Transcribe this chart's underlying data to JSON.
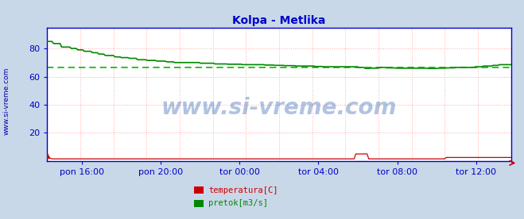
{
  "title": "Kolpa - Metlika",
  "title_color": "#0000cc",
  "title_fontsize": 10,
  "bg_color": "#c8d8e8",
  "plot_bg_color": "#ffffff",
  "grid_color": "#ffaaaa",
  "ylim": [
    0,
    95
  ],
  "yticks": [
    20,
    40,
    60,
    80
  ],
  "ytick_color": "#0000cc",
  "ytick_fontsize": 8,
  "xtick_labels": [
    "pon 16:00",
    "pon 20:00",
    "tor 00:00",
    "tor 04:00",
    "tor 08:00",
    "tor 12:00"
  ],
  "xtick_color": "#0000cc",
  "xtick_fontsize": 8,
  "axis_color": "#0000cc",
  "watermark_text": "www.si-vreme.com",
  "watermark_color": "#2255aa",
  "watermark_alpha": 0.35,
  "watermark_fontsize": 20,
  "ylabel_text": "www.si-vreme.com",
  "ylabel_color": "#0000aa",
  "ylabel_fontsize": 6.5,
  "legend_labels": [
    "temperatura[C]",
    "pretok[m3/s]"
  ],
  "legend_colors": [
    "#cc0000",
    "#008800"
  ],
  "pretok_color": "#008800",
  "temperatura_color": "#cc0000",
  "avg_line_color": "#00bb00",
  "avg_line_value": 66.5,
  "num_points": 288,
  "temperatura_value": 1.5
}
